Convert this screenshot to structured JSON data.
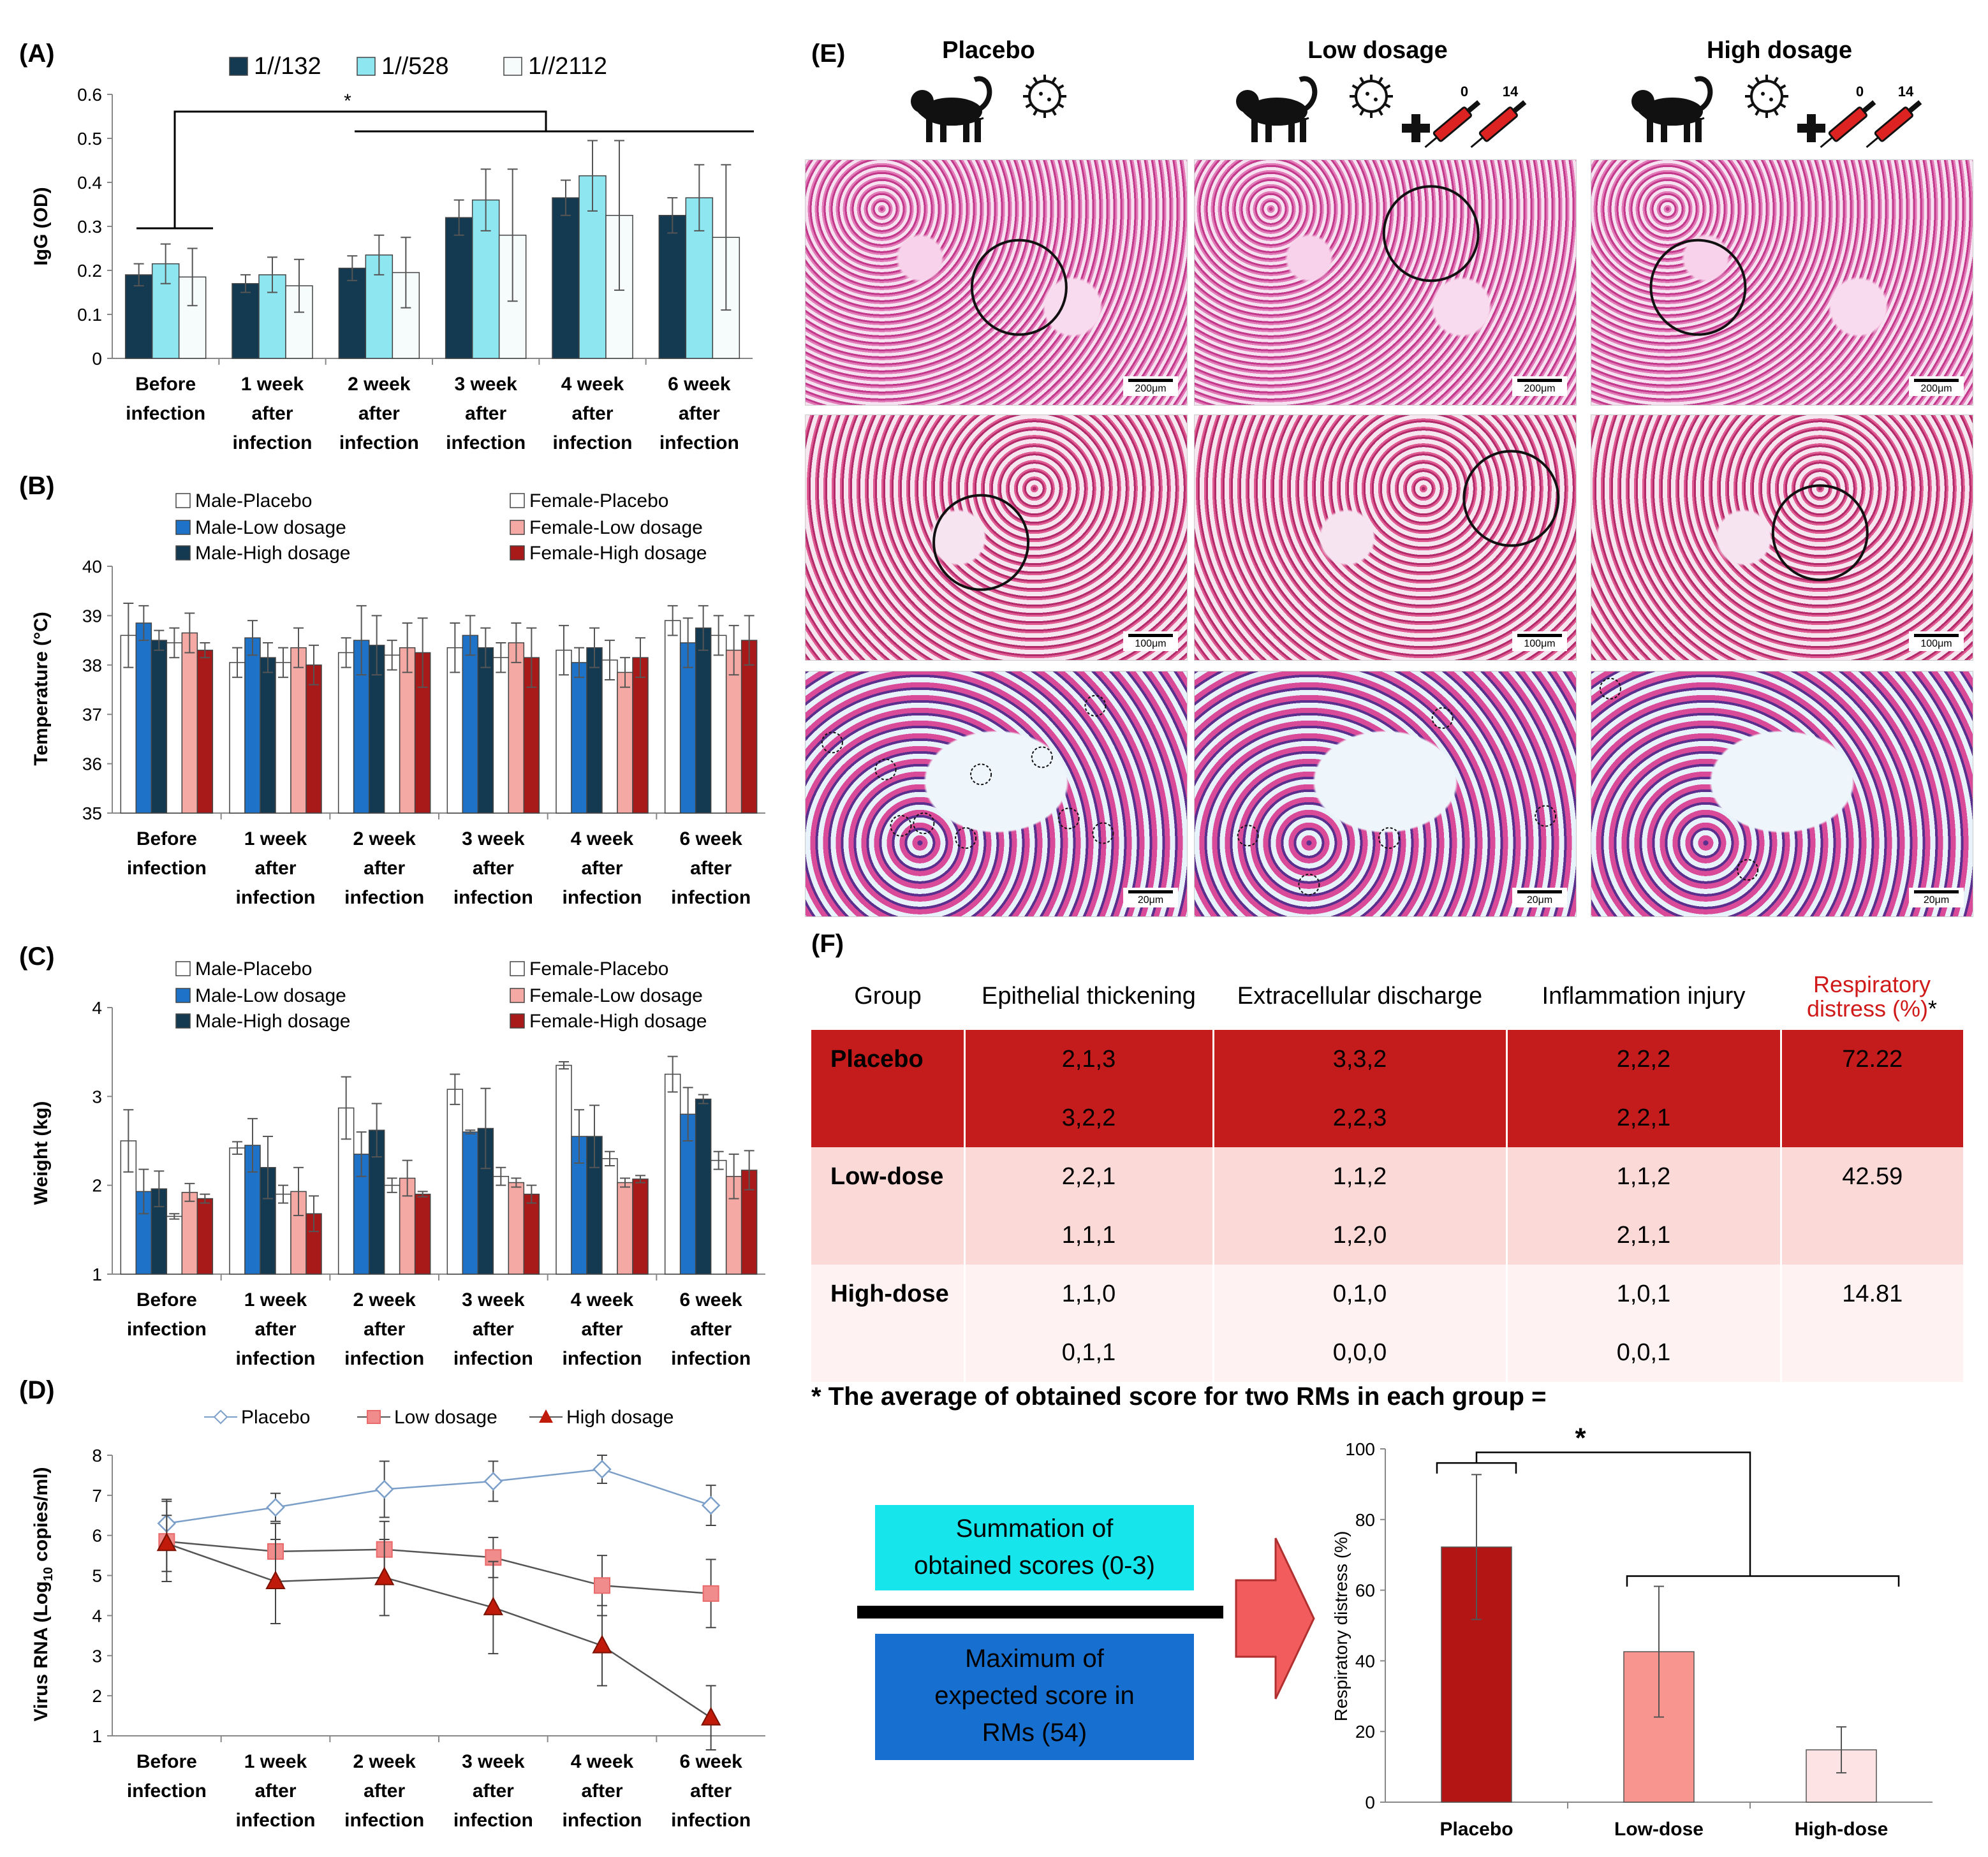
{
  "labels": {
    "A": "(A)",
    "B": "(B)",
    "C": "(C)",
    "D": "(D)",
    "E": "(E)",
    "F": "(F)"
  },
  "colors": {
    "dil1": "#143a52",
    "dil2": "#8de6f0",
    "dil3": "#f6fbfc",
    "male_placebo": "#ffffff",
    "male_low": "#1e73c8",
    "male_high": "#143a52",
    "female_placebo": "#ffffff",
    "female_low": "#f4a9a4",
    "female_high": "#a81a1a",
    "placebo_line": "#7b9fc8",
    "low_line": "#e96a6a",
    "high_line": "#c01a0a",
    "tbl_red": "#c41c1c",
    "tbl_pink": "#fbd9d7",
    "tbl_light": "#fef3f2",
    "cyan_box": "#17e5ec",
    "blue_box": "#1770d0",
    "arrow": "#f25c5c",
    "rd_placebo": "#b31515",
    "rd_low": "#f7958e",
    "rd_high": "#fde3e3"
  },
  "categories": [
    "Before\ninfection",
    "1 week\nafter\ninfection",
    "2 week\nafter\ninfection",
    "3 week\nafter\ninfection",
    "4 week\nafter\ninfection",
    "6 week\nafter\ninfection"
  ],
  "chart_data": [
    {
      "id": "A",
      "type": "bar",
      "ylabel": "IgG (OD)",
      "ylim": [
        0,
        0.6
      ],
      "yticks": [
        "0",
        "0.1",
        "0.2",
        "0.3",
        "0.4",
        "0.5",
        "0.6"
      ],
      "series": [
        {
          "name": "1//132",
          "values": [
            0.19,
            0.17,
            0.205,
            0.32,
            0.365,
            0.325
          ],
          "err": [
            0.025,
            0.02,
            0.028,
            0.04,
            0.04,
            0.04
          ]
        },
        {
          "name": "1//528",
          "values": [
            0.215,
            0.19,
            0.235,
            0.36,
            0.415,
            0.365
          ],
          "err": [
            0.045,
            0.04,
            0.045,
            0.07,
            0.08,
            0.075
          ]
        },
        {
          "name": "1//2112",
          "values": [
            0.185,
            0.165,
            0.195,
            0.28,
            0.325,
            0.275
          ],
          "err": [
            0.065,
            0.06,
            0.08,
            0.15,
            0.17,
            0.165
          ]
        }
      ],
      "annotation": "*"
    },
    {
      "id": "B",
      "type": "bar",
      "ylabel": "Temperature (°C)",
      "ylim": [
        35,
        40
      ],
      "yticks": [
        "35",
        "36",
        "37",
        "38",
        "39",
        "40"
      ],
      "series": [
        {
          "name": "Male-Placebo",
          "values": [
            38.6,
            38.05,
            38.25,
            38.35,
            38.3,
            38.9
          ],
          "err": [
            0.65,
            0.3,
            0.3,
            0.5,
            0.5,
            0.3
          ]
        },
        {
          "name": "Male-Low dosage",
          "values": [
            38.85,
            38.55,
            38.5,
            38.6,
            38.05,
            38.45
          ],
          "err": [
            0.35,
            0.35,
            0.7,
            0.4,
            0.3,
            0.5
          ]
        },
        {
          "name": "Male-High dosage",
          "values": [
            38.5,
            38.15,
            38.4,
            38.35,
            38.35,
            38.75
          ],
          "err": [
            0.2,
            0.3,
            0.6,
            0.4,
            0.4,
            0.45
          ]
        },
        {
          "name": "Female-Placebo",
          "values": [
            38.45,
            38.05,
            38.2,
            38.15,
            38.1,
            38.6
          ],
          "err": [
            0.3,
            0.3,
            0.3,
            0.3,
            0.4,
            0.4
          ]
        },
        {
          "name": "Female-Low dosage",
          "values": [
            38.65,
            38.35,
            38.35,
            38.45,
            37.85,
            38.3
          ],
          "err": [
            0.4,
            0.4,
            0.5,
            0.4,
            0.3,
            0.5
          ]
        },
        {
          "name": "Female-High dosage",
          "values": [
            38.3,
            38.0,
            38.25,
            38.15,
            38.15,
            38.5
          ],
          "err": [
            0.15,
            0.4,
            0.7,
            0.6,
            0.4,
            0.5
          ]
        }
      ]
    },
    {
      "id": "C",
      "type": "bar",
      "ylabel": "Weight (kg)",
      "ylim": [
        1,
        4
      ],
      "yticks": [
        "1",
        "2",
        "3",
        "4"
      ],
      "series": [
        {
          "name": "Male-Placebo",
          "values": [
            2.5,
            2.42,
            2.87,
            3.08,
            3.35,
            3.25
          ],
          "err": [
            0.35,
            0.07,
            0.35,
            0.17,
            0.04,
            0.2
          ]
        },
        {
          "name": "Male-Low dosage",
          "values": [
            1.93,
            2.45,
            2.35,
            2.6,
            2.55,
            2.8
          ],
          "err": [
            0.25,
            0.3,
            0.25,
            0.02,
            0.3,
            0.3
          ]
        },
        {
          "name": "Male-High dosage",
          "values": [
            1.96,
            2.2,
            2.62,
            2.64,
            2.55,
            2.97
          ],
          "err": [
            0.2,
            0.35,
            0.3,
            0.45,
            0.35,
            0.05
          ]
        },
        {
          "name": "Female-Placebo",
          "values": [
            1.65,
            1.9,
            2.0,
            2.1,
            2.3,
            2.28
          ],
          "err": [
            0.03,
            0.1,
            0.08,
            0.1,
            0.08,
            0.1
          ]
        },
        {
          "name": "Female-Low dosage",
          "values": [
            1.92,
            1.93,
            2.08,
            2.03,
            2.03,
            2.1
          ],
          "err": [
            0.1,
            0.27,
            0.2,
            0.05,
            0.05,
            0.25
          ]
        },
        {
          "name": "Female-High dosage",
          "values": [
            1.85,
            1.68,
            1.9,
            1.9,
            2.07,
            2.17
          ],
          "err": [
            0.05,
            0.2,
            0.03,
            0.1,
            0.04,
            0.22
          ]
        }
      ]
    },
    {
      "id": "D",
      "type": "line",
      "ylabel_main": "Virus RNA (Log",
      "ylabel_sub": "10",
      "ylabel_end": " copies/ml)",
      "ylim": [
        1,
        8
      ],
      "yticks": [
        "1",
        "2",
        "3",
        "4",
        "5",
        "6",
        "7",
        "8"
      ],
      "series": [
        {
          "name": "Placebo",
          "values": [
            6.3,
            6.7,
            7.15,
            7.35,
            7.65,
            6.75
          ],
          "err": [
            0.6,
            0.35,
            0.7,
            0.5,
            0.35,
            0.5
          ]
        },
        {
          "name": "Low dosage",
          "values": [
            5.85,
            5.6,
            5.65,
            5.45,
            4.75,
            4.55
          ],
          "err": [
            1.0,
            0.7,
            0.7,
            0.5,
            0.75,
            0.85
          ]
        },
        {
          "name": "High dosage",
          "values": [
            5.8,
            4.85,
            4.95,
            4.2,
            3.25,
            1.45
          ],
          "err": [
            0.7,
            1.05,
            0.95,
            1.15,
            1.0,
            0.8
          ]
        }
      ]
    },
    {
      "id": "F2",
      "type": "bar",
      "ylabel": "Respiratory distress (%)",
      "ylim": [
        0,
        100
      ],
      "yticks": [
        "0",
        "20",
        "40",
        "60",
        "80",
        "100"
      ],
      "categories": [
        "Placebo",
        "Low-dose",
        "High-dose"
      ],
      "values": [
        72.22,
        42.59,
        14.81
      ],
      "err": [
        20.5,
        18.5,
        6.5
      ],
      "annotation": "*"
    }
  ],
  "panelE": {
    "groups": [
      "Placebo",
      "Low dosage",
      "High dosage"
    ],
    "day_labels": [
      "0",
      "14"
    ],
    "scale_labels": [
      "200μm",
      "100μm",
      "20μm"
    ]
  },
  "table": {
    "headers": [
      "Group",
      "Epithelial thickening",
      "Extracellular discharge",
      "Inflammation injury"
    ],
    "rd_header_line1": "Respiratory",
    "rd_header_line2": "distress (%)",
    "rd_star": "*",
    "rows": [
      {
        "group": "Placebo",
        "c1": [
          "2,1,3",
          "3,2,2"
        ],
        "c2": [
          "3,3,2",
          "2,2,3"
        ],
        "c3": [
          "2,2,2",
          "2,2,1"
        ],
        "rd": "72.22"
      },
      {
        "group": "Low-dose",
        "c1": [
          "2,2,1",
          "1,1,1"
        ],
        "c2": [
          "1,1,2",
          "1,2,0"
        ],
        "c3": [
          "1,1,2",
          "2,1,1"
        ],
        "rd": "42.59"
      },
      {
        "group": "High-dose",
        "c1": [
          "1,1,0",
          "0,1,1"
        ],
        "c2": [
          "0,1,0",
          "0,0,0"
        ],
        "c3": [
          "1,0,1",
          "0,0,1"
        ],
        "rd": "14.81"
      }
    ],
    "footnote": "* The average of obtained score for two RMs in each group ="
  },
  "formula": {
    "top_line1": "Summation of",
    "top_line2": "obtained scores (0-3)",
    "bottom_line1": "Maximum of",
    "bottom_line2": "expected score in",
    "bottom_line3": "RMs (54)"
  }
}
